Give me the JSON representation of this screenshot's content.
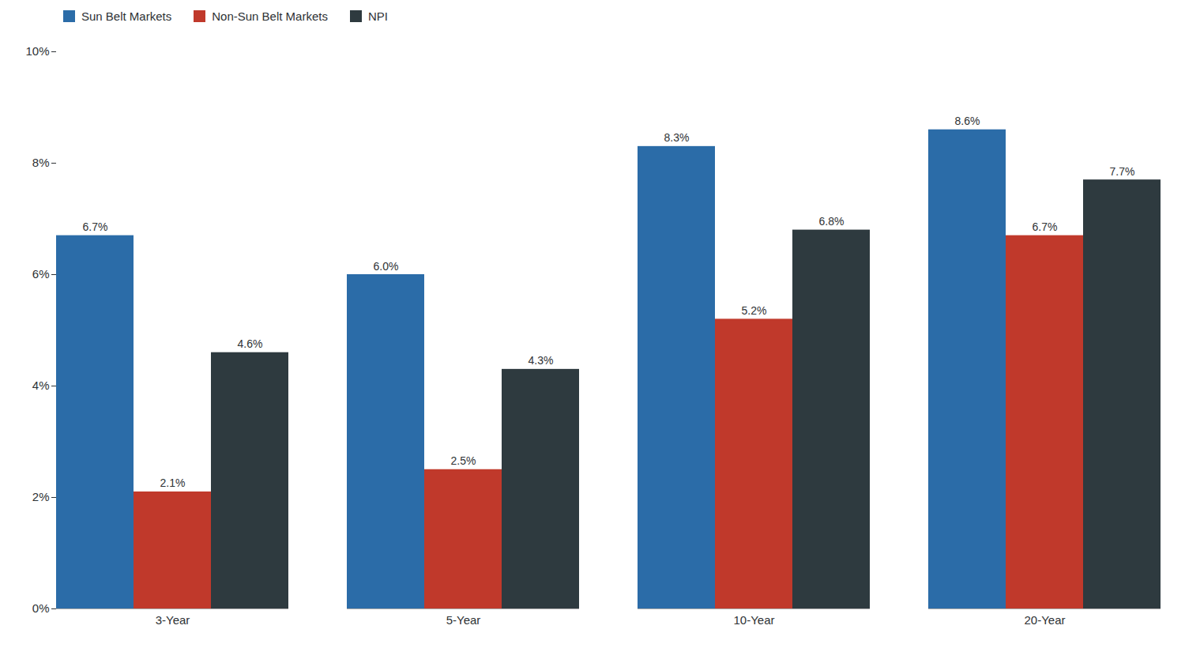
{
  "chart_data": {
    "type": "bar",
    "categories": [
      "3-Year",
      "5-Year",
      "10-Year",
      "20-Year"
    ],
    "series": [
      {
        "name": "Sun Belt Markets",
        "color": "#2B6CA8",
        "values": [
          6.7,
          6.0,
          8.3,
          8.6
        ],
        "value_labels": [
          "6.7%",
          "6.0%",
          "8.3%",
          "8.6%"
        ]
      },
      {
        "name": "Non-Sun Belt Markets",
        "color": "#C0392B",
        "values": [
          2.1,
          2.5,
          5.2,
          6.7
        ],
        "value_labels": [
          "2.1%",
          "2.5%",
          "5.2%",
          "6.7%"
        ]
      },
      {
        "name": "NPI",
        "color": "#2E3A3F",
        "values": [
          4.6,
          4.3,
          6.8,
          7.7
        ],
        "value_labels": [
          "4.6%",
          "4.3%",
          "6.8%",
          "7.7%"
        ]
      }
    ],
    "ylim": [
      0,
      10
    ],
    "yticks": [
      {
        "value": 0,
        "label": "0%"
      },
      {
        "value": 2,
        "label": "2%"
      },
      {
        "value": 4,
        "label": "4%"
      },
      {
        "value": 6,
        "label": "6%"
      },
      {
        "value": 8,
        "label": "8%"
      },
      {
        "value": 10,
        "label": "10%"
      }
    ],
    "grid": false,
    "legend": "upper left",
    "data_labels": true
  }
}
